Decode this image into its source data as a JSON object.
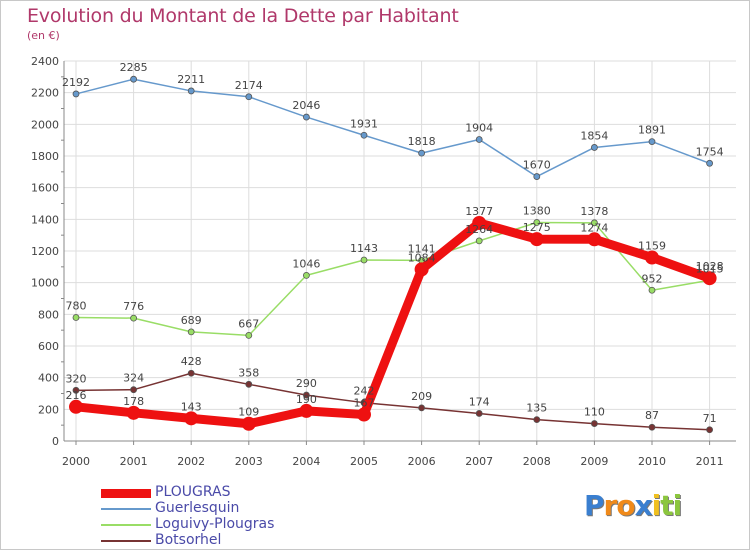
{
  "chart_data": {
    "type": "line",
    "title": "Evolution du Montant de la Dette par Habitant",
    "subtitle": "(en €)",
    "categories": [
      "2000",
      "2001",
      "2002",
      "2003",
      "2004",
      "2005",
      "2006",
      "2007",
      "2008",
      "2009",
      "2010",
      "2011"
    ],
    "ylim": [
      0,
      2400
    ],
    "yticks": [
      0,
      200,
      400,
      600,
      800,
      1000,
      1200,
      1400,
      1600,
      1800,
      2000,
      2200,
      2400
    ],
    "grid": true,
    "legend_position": "bottom-left",
    "series": [
      {
        "name": "PLOUGRAS",
        "color": "#ee1111",
        "values": [
          216,
          178,
          143,
          109,
          190,
          167,
          1084,
          1377,
          1275,
          1274,
          1159,
          1028
        ],
        "labels": [
          "216",
          "178",
          "143",
          "109",
          "190",
          "167",
          "1084",
          "1377",
          "1275",
          "1274",
          "1159",
          "1028"
        ]
      },
      {
        "name": "Guerlesquin",
        "color": "#6699cc",
        "values": [
          2192,
          2285,
          2211,
          2174,
          2046,
          1931,
          1818,
          1904,
          1670,
          1854,
          1891,
          1754
        ],
        "labels": [
          "2192",
          "2285",
          "2211",
          "2174",
          "2046",
          "1931",
          "1818",
          "1904",
          "1670",
          "1854",
          "1891",
          "1754"
        ]
      },
      {
        "name": "Loguivy-Plougras",
        "color": "#99dd66",
        "values": [
          780,
          776,
          689,
          667,
          1046,
          1143,
          1141,
          1264,
          1380,
          1378,
          952,
          1015
        ],
        "labels": [
          "780",
          "776",
          "689",
          "667",
          "1046",
          "1143",
          "1141",
          "1264",
          "1380",
          "1378",
          "952",
          "1015"
        ]
      },
      {
        "name": "Botsorhel",
        "color": "#773333",
        "values": [
          320,
          324,
          428,
          358,
          290,
          242,
          209,
          174,
          135,
          110,
          87,
          71
        ],
        "labels": [
          "320",
          "324",
          "428",
          "358",
          "290",
          "242",
          "209",
          "174",
          "135",
          "110",
          "87",
          "71"
        ]
      }
    ]
  },
  "logo": {
    "letters": [
      "P",
      "r",
      "o",
      "x",
      "i",
      "t",
      "i"
    ],
    "colors": [
      "#3a7fd0",
      "#f08a1a",
      "#f08a1a",
      "#3a7fd0",
      "#f0c020",
      "#8cc63f",
      "#8cc63f"
    ]
  }
}
